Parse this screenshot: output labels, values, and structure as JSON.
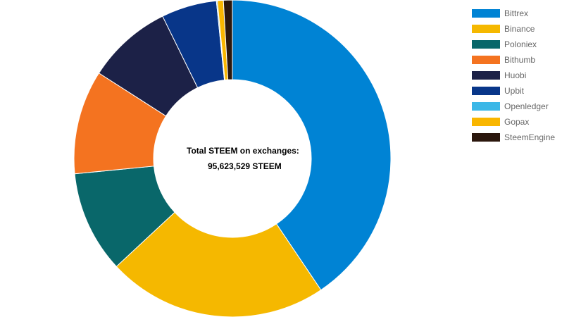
{
  "chart_data": {
    "type": "pie",
    "hole": true,
    "center_label": "Total STEEM on exchanges:",
    "center_value": "95,623,529 STEEM",
    "legend_position": "top-right",
    "series": [
      {
        "name": "Bittrex",
        "value": 40.2,
        "color": "#0083d4"
      },
      {
        "name": "Binance",
        "value": 22.3,
        "color": "#f5b800"
      },
      {
        "name": "Poloniex",
        "value": 10.3,
        "color": "#09676a"
      },
      {
        "name": "Bithumb",
        "value": 10.5,
        "color": "#f47320"
      },
      {
        "name": "Huobi",
        "value": 8.6,
        "color": "#1c2147"
      },
      {
        "name": "Upbit",
        "value": 5.6,
        "color": "#083689"
      },
      {
        "name": "Openledger",
        "value": 0.1,
        "color": "#3bb7e7"
      },
      {
        "name": "Gopax",
        "value": 0.6,
        "color": "#f9b600"
      },
      {
        "name": "SteemEngine",
        "value": 0.9,
        "color": "#2b170d"
      }
    ]
  }
}
